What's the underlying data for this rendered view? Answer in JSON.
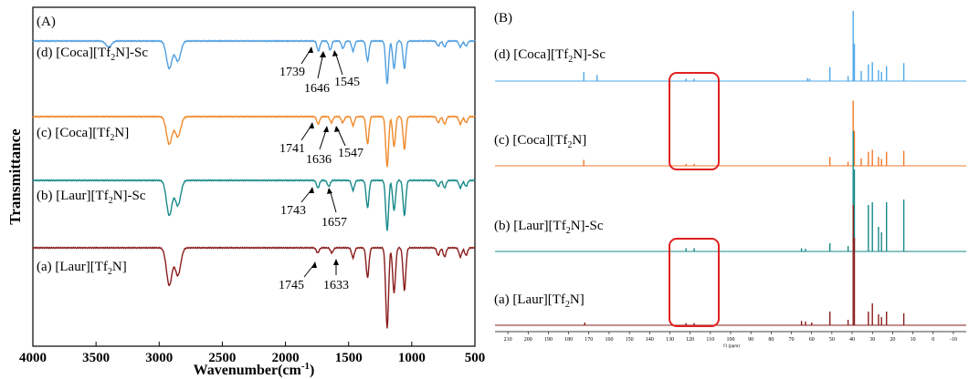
{
  "panel_a": {
    "label": "(A)",
    "ylabel": "Transmittance",
    "xlabel_main": "Wavenumber(cm",
    "xlabel_exp": "-1",
    "xlabel_close": ")",
    "xticks": [
      "4000",
      "3500",
      "3000",
      "2500",
      "2000",
      "1500",
      "1000",
      "500"
    ],
    "colors": {
      "d": "#4f9fe0",
      "c": "#f08a2c",
      "b": "#17898a",
      "a": "#8a1c1c"
    },
    "trace_labels": {
      "d": {
        "pre": "(d) [Coca][Tf",
        "sub": "2",
        "post": "N]-Sc"
      },
      "c": {
        "pre": "(c) [Coca][Tf",
        "sub": "2",
        "post": "N]"
      },
      "b": {
        "pre": "(b) [Laur][Tf",
        "sub": "2",
        "post": "N]-Sc"
      },
      "a": {
        "pre": "(a) [Laur][Tf",
        "sub": "2",
        "post": "N]"
      }
    },
    "peak_labels": {
      "d": [
        "1739",
        "1646",
        "1545"
      ],
      "c": [
        "1741",
        "1636",
        "1547"
      ],
      "b": [
        "1743",
        "1657"
      ],
      "a": [
        "1745",
        "1633"
      ]
    }
  },
  "panel_b": {
    "label": "(B)",
    "xlabel": "f1 (ppm)",
    "xticks": [
      "210",
      "200",
      "190",
      "180",
      "170",
      "160",
      "150",
      "140",
      "130",
      "120",
      "110",
      "100",
      "90",
      "80",
      "70",
      "60",
      "50",
      "40",
      "30",
      "20",
      "10",
      "0",
      "-10"
    ],
    "colors": {
      "d": "#4fa9e8",
      "c": "#f07a2c",
      "b": "#17898a",
      "a": "#8a1c1c",
      "highlight": "#e02020"
    },
    "trace_labels": {
      "d": {
        "pre": "(d) [Coca][Tf",
        "sub": "2",
        "post": "N]-Sc"
      },
      "c": {
        "pre": "(c) [Coca][Tf",
        "sub": "2",
        "post": "N]"
      },
      "b": {
        "pre": "(b) [Laur][Tf",
        "sub": "2",
        "post": "N]-Sc"
      },
      "a": {
        "pre": "(a) [Laur][Tf",
        "sub": "2",
        "post": "N]"
      }
    }
  },
  "chart_data": [
    {
      "type": "line",
      "title": "(A)",
      "xlabel": "Wavenumber(cm-1)",
      "ylabel": "Transmittance",
      "xlim": [
        4000,
        500
      ],
      "x_reversed": true,
      "series": [
        {
          "name": "(d) [Coca][Tf2N]-Sc",
          "peaks_labeled": [
            1739,
            1646,
            1545
          ],
          "absorption_bands": [
            {
              "x": 3400,
              "depth": 0.12
            },
            {
              "x": 2920,
              "depth": 0.55
            },
            {
              "x": 2852,
              "depth": 0.4
            },
            {
              "x": 1739,
              "depth": 0.2
            },
            {
              "x": 1646,
              "depth": 0.18
            },
            {
              "x": 1545,
              "depth": 0.15
            },
            {
              "x": 1465,
              "depth": 0.2
            },
            {
              "x": 1350,
              "depth": 0.4
            },
            {
              "x": 1195,
              "depth": 0.85
            },
            {
              "x": 1140,
              "depth": 0.55
            },
            {
              "x": 1058,
              "depth": 0.55
            },
            {
              "x": 790,
              "depth": 0.1
            },
            {
              "x": 740,
              "depth": 0.12
            },
            {
              "x": 615,
              "depth": 0.12
            },
            {
              "x": 570,
              "depth": 0.1
            }
          ]
        },
        {
          "name": "(c) [Coca][Tf2N]",
          "peaks_labeled": [
            1741,
            1636,
            1547
          ],
          "absorption_bands": [
            {
              "x": 2920,
              "depth": 0.55
            },
            {
              "x": 2852,
              "depth": 0.4
            },
            {
              "x": 1741,
              "depth": 0.15
            },
            {
              "x": 1636,
              "depth": 0.12
            },
            {
              "x": 1547,
              "depth": 0.12
            },
            {
              "x": 1465,
              "depth": 0.18
            },
            {
              "x": 1350,
              "depth": 0.55
            },
            {
              "x": 1195,
              "depth": 1.0
            },
            {
              "x": 1140,
              "depth": 0.6
            },
            {
              "x": 1058,
              "depth": 0.65
            },
            {
              "x": 790,
              "depth": 0.12
            },
            {
              "x": 740,
              "depth": 0.15
            },
            {
              "x": 615,
              "depth": 0.15
            },
            {
              "x": 570,
              "depth": 0.12
            }
          ]
        },
        {
          "name": "(b) [Laur][Tf2N]-Sc",
          "peaks_labeled": [
            1743,
            1657
          ],
          "absorption_bands": [
            {
              "x": 2920,
              "depth": 0.7
            },
            {
              "x": 2852,
              "depth": 0.5
            },
            {
              "x": 1743,
              "depth": 0.15
            },
            {
              "x": 1657,
              "depth": 0.12
            },
            {
              "x": 1465,
              "depth": 0.2
            },
            {
              "x": 1350,
              "depth": 0.55
            },
            {
              "x": 1195,
              "depth": 1.0
            },
            {
              "x": 1140,
              "depth": 0.6
            },
            {
              "x": 1058,
              "depth": 0.7
            },
            {
              "x": 790,
              "depth": 0.12
            },
            {
              "x": 740,
              "depth": 0.15
            },
            {
              "x": 615,
              "depth": 0.15
            },
            {
              "x": 570,
              "depth": 0.12
            }
          ]
        },
        {
          "name": "(a) [Laur][Tf2N]",
          "peaks_labeled": [
            1745,
            1633
          ],
          "absorption_bands": [
            {
              "x": 2920,
              "depth": 0.75
            },
            {
              "x": 2852,
              "depth": 0.55
            },
            {
              "x": 1745,
              "depth": 0.1
            },
            {
              "x": 1633,
              "depth": 0.1
            },
            {
              "x": 1465,
              "depth": 0.2
            },
            {
              "x": 1350,
              "depth": 0.6
            },
            {
              "x": 1195,
              "depth": 1.6
            },
            {
              "x": 1140,
              "depth": 0.9
            },
            {
              "x": 1058,
              "depth": 0.85
            },
            {
              "x": 790,
              "depth": 0.15
            },
            {
              "x": 740,
              "depth": 0.18
            },
            {
              "x": 615,
              "depth": 0.18
            },
            {
              "x": 570,
              "depth": 0.15
            }
          ]
        }
      ]
    },
    {
      "type": "line",
      "title": "(B)",
      "xlabel": "f1 (ppm)",
      "xlim": [
        215,
        -15
      ],
      "x_reversed": true,
      "highlight_region_ppm": [
        133,
        105
      ],
      "series": [
        {
          "name": "(d) [Coca][Tf2N]-Sc",
          "peaks": [
            {
              "x": 172.5,
              "h": 0.18
            },
            {
              "x": 166,
              "h": 0.12
            },
            {
              "x": 122,
              "h": 0.05
            },
            {
              "x": 118,
              "h": 0.05
            },
            {
              "x": 62,
              "h": 0.06
            },
            {
              "x": 61,
              "h": 0.05
            },
            {
              "x": 51,
              "h": 0.28
            },
            {
              "x": 42,
              "h": 0.1
            },
            {
              "x": 39.5,
              "h": 1.4
            },
            {
              "x": 38.9,
              "h": 0.75
            },
            {
              "x": 35.5,
              "h": 0.2
            },
            {
              "x": 32,
              "h": 0.33
            },
            {
              "x": 30,
              "h": 0.38
            },
            {
              "x": 27,
              "h": 0.22
            },
            {
              "x": 25.5,
              "h": 0.18
            },
            {
              "x": 23,
              "h": 0.3
            },
            {
              "x": 14.5,
              "h": 0.36
            }
          ]
        },
        {
          "name": "(c) [Coca][Tf2N]",
          "peaks": [
            {
              "x": 172.5,
              "h": 0.12
            },
            {
              "x": 122,
              "h": 0.04
            },
            {
              "x": 118,
              "h": 0.04
            },
            {
              "x": 51,
              "h": 0.18
            },
            {
              "x": 42,
              "h": 0.08
            },
            {
              "x": 39.5,
              "h": 1.3
            },
            {
              "x": 38.9,
              "h": 0.7
            },
            {
              "x": 35.5,
              "h": 0.15
            },
            {
              "x": 32,
              "h": 0.28
            },
            {
              "x": 30,
              "h": 0.32
            },
            {
              "x": 27,
              "h": 0.18
            },
            {
              "x": 25.5,
              "h": 0.14
            },
            {
              "x": 23,
              "h": 0.28
            },
            {
              "x": 14.5,
              "h": 0.3
            }
          ]
        },
        {
          "name": "(b) [Laur][Tf2N]-Sc",
          "peaks": [
            {
              "x": 122,
              "h": 0.06
            },
            {
              "x": 118,
              "h": 0.06
            },
            {
              "x": 65,
              "h": 0.06
            },
            {
              "x": 63,
              "h": 0.05
            },
            {
              "x": 51,
              "h": 0.15
            },
            {
              "x": 42,
              "h": 0.1
            },
            {
              "x": 39.5,
              "h": 2.2
            },
            {
              "x": 38.9,
              "h": 1.5
            },
            {
              "x": 32,
              "h": 0.85
            },
            {
              "x": 30,
              "h": 0.9
            },
            {
              "x": 27,
              "h": 0.45
            },
            {
              "x": 25.5,
              "h": 0.35
            },
            {
              "x": 23,
              "h": 0.9
            },
            {
              "x": 14.5,
              "h": 0.95
            }
          ]
        },
        {
          "name": "(a) [Laur][Tf2N]",
          "peaks": [
            {
              "x": 172,
              "h": 0.05
            },
            {
              "x": 122,
              "h": 0.04
            },
            {
              "x": 118,
              "h": 0.04
            },
            {
              "x": 65,
              "h": 0.08
            },
            {
              "x": 63,
              "h": 0.07
            },
            {
              "x": 60,
              "h": 0.05
            },
            {
              "x": 51,
              "h": 0.25
            },
            {
              "x": 42,
              "h": 0.1
            },
            {
              "x": 39.5,
              "h": 2.2
            },
            {
              "x": 38.9,
              "h": 1.6
            },
            {
              "x": 32,
              "h": 0.25
            },
            {
              "x": 30,
              "h": 0.4
            },
            {
              "x": 27,
              "h": 0.2
            },
            {
              "x": 25.5,
              "h": 0.15
            },
            {
              "x": 23,
              "h": 0.25
            },
            {
              "x": 14.5,
              "h": 0.22
            }
          ]
        }
      ]
    }
  ]
}
